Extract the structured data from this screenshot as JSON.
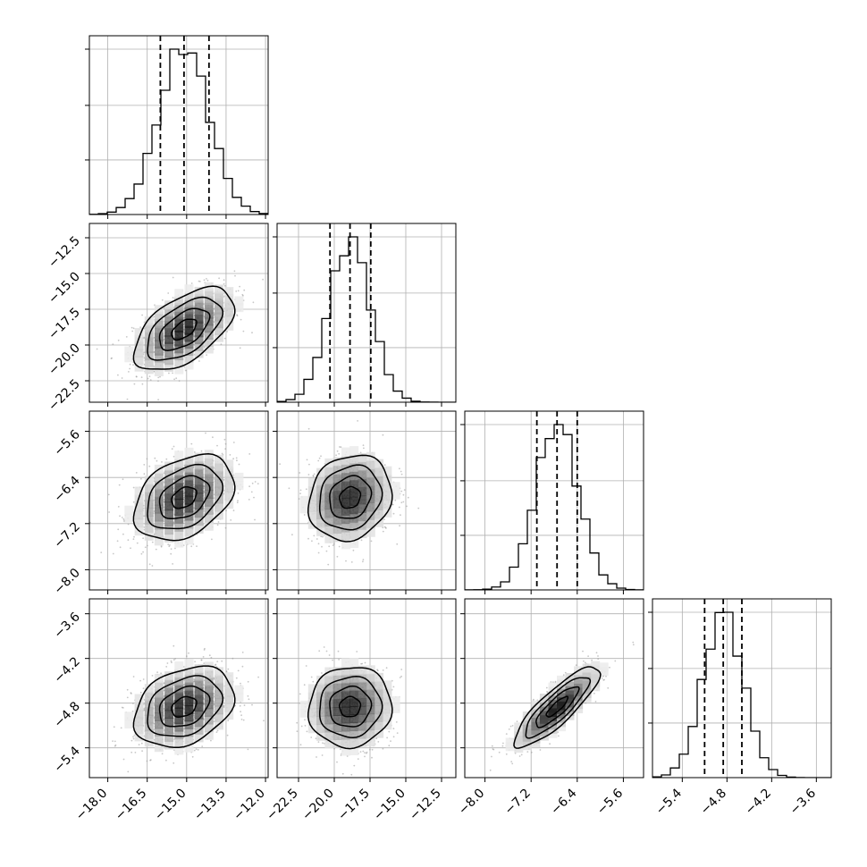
{
  "chart_data": {
    "type": "corner",
    "title": "",
    "parameters": [
      {
        "index": 0,
        "range": [
          -18.7,
          -11.9
        ],
        "ticks": [
          -18.0,
          -16.5,
          -15.0,
          -13.5,
          -12.0
        ],
        "tick_labels": [
          "−18.0",
          "−16.5",
          "−15.0",
          "−13.5",
          "−12.0"
        ],
        "quantiles": [
          -16.0,
          -15.1,
          -14.15
        ],
        "mean": -15.1,
        "sigma": 0.95
      },
      {
        "index": 1,
        "range": [
          -24.0,
          -11.5
        ],
        "ticks": [
          -22.5,
          -20.0,
          -17.5,
          -15.0,
          -12.5
        ],
        "tick_labels": [
          "−22.5",
          "−20.0",
          "−17.5",
          "−15.0",
          "−12.5"
        ],
        "quantiles": [
          -20.3,
          -18.9,
          -17.45
        ],
        "mean": -18.9,
        "sigma": 1.45
      },
      {
        "index": 2,
        "range": [
          -8.35,
          -5.25
        ],
        "ticks": [
          -8.0,
          -7.2,
          -6.4,
          -5.6
        ],
        "tick_labels": [
          "−8.0",
          "−7.2",
          "−6.4",
          "−5.6"
        ],
        "quantiles": [
          -7.1,
          -6.75,
          -6.4
        ],
        "mean": -6.75,
        "sigma": 0.37
      },
      {
        "index": 3,
        "range": [
          -5.8,
          -3.4
        ],
        "ticks": [
          -5.4,
          -4.8,
          -4.2,
          -3.6
        ],
        "tick_labels": [
          "−5.4",
          "−4.8",
          "−4.2",
          "−3.6"
        ],
        "quantiles": [
          -5.1,
          -4.85,
          -4.6
        ],
        "mean": -4.85,
        "sigma": 0.27
      }
    ],
    "correlations": [
      {
        "row": 1,
        "col": 0,
        "rho": 0.55
      },
      {
        "row": 2,
        "col": 0,
        "rho": 0.35
      },
      {
        "row": 2,
        "col": 1,
        "rho": 0.15
      },
      {
        "row": 3,
        "col": 0,
        "rho": 0.3
      },
      {
        "row": 3,
        "col": 1,
        "rho": 0.05
      },
      {
        "row": 3,
        "col": 2,
        "rho": 0.85
      }
    ],
    "histogram_bins": 20,
    "scatter_samples": 900,
    "contour_levels_sigma": [
      0.5,
      1.0,
      1.5,
      2.0
    ],
    "grid": true,
    "colors": {
      "lines": "#000000",
      "scatter": "#999999",
      "grid": "#b0b0b0"
    }
  }
}
